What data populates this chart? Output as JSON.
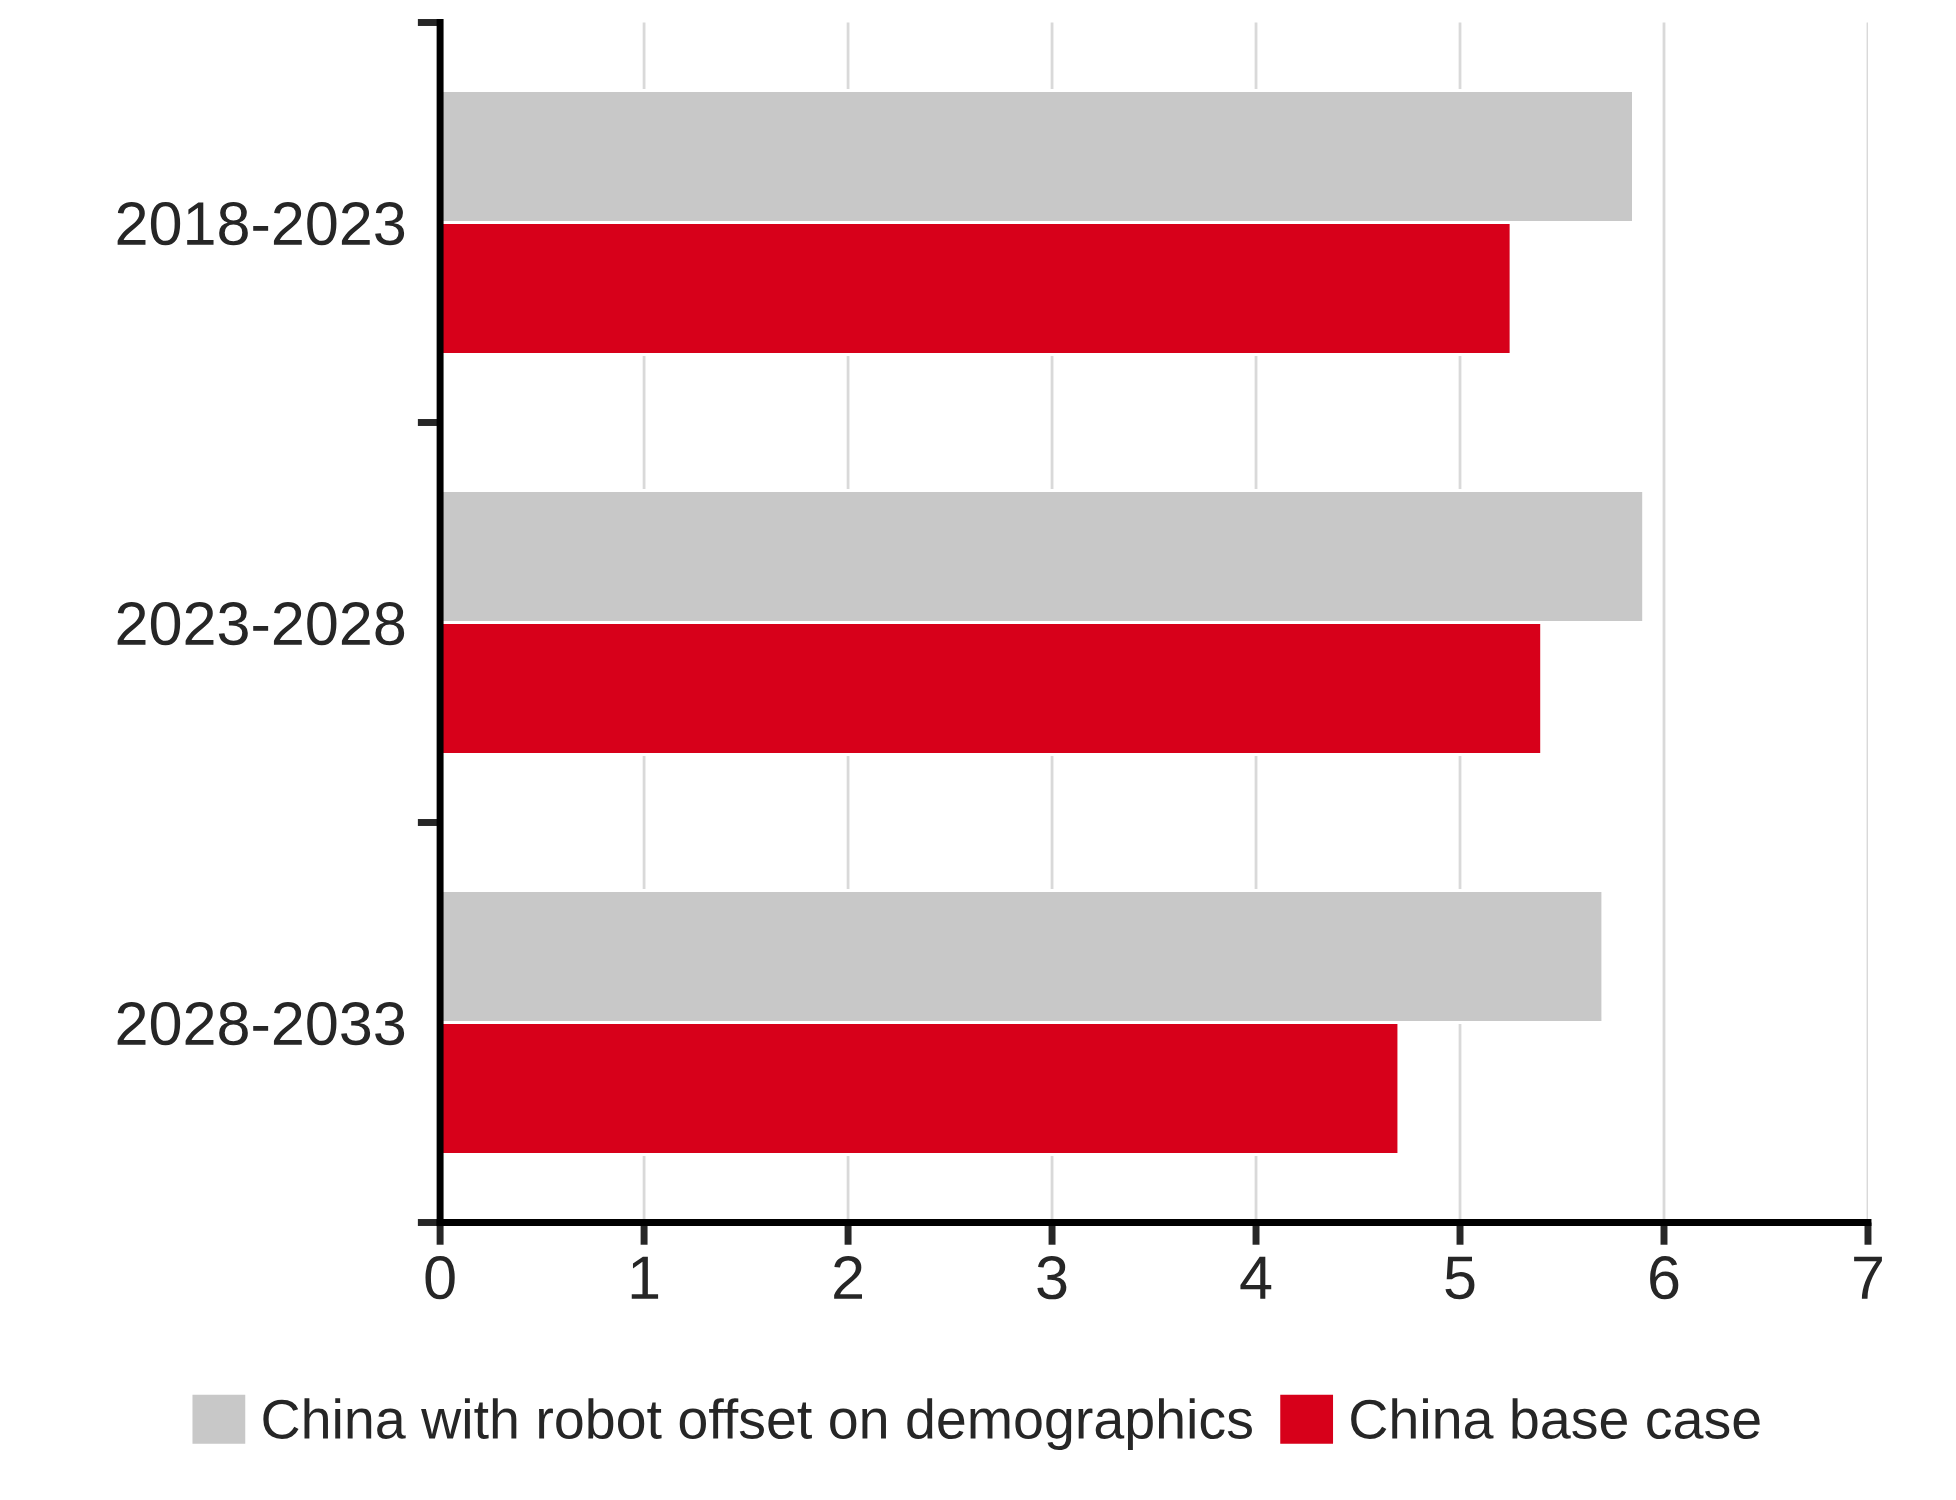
{
  "chart_data": {
    "type": "bar",
    "orientation": "horizontal",
    "categories": [
      "2018-2023",
      "2023-2028",
      "2028-2033"
    ],
    "series": [
      {
        "name": "China with robot offset on demographics",
        "color": "#c8c8c8",
        "values": [
          5.85,
          5.9,
          5.7
        ]
      },
      {
        "name": "China base case",
        "color": "#d7001a",
        "values": [
          5.25,
          5.4,
          4.7
        ]
      }
    ],
    "xlim": [
      0,
      7
    ],
    "xticks": [
      0,
      1,
      2,
      3,
      4,
      5,
      6,
      7
    ],
    "grid": "x",
    "legend": "bottom"
  }
}
